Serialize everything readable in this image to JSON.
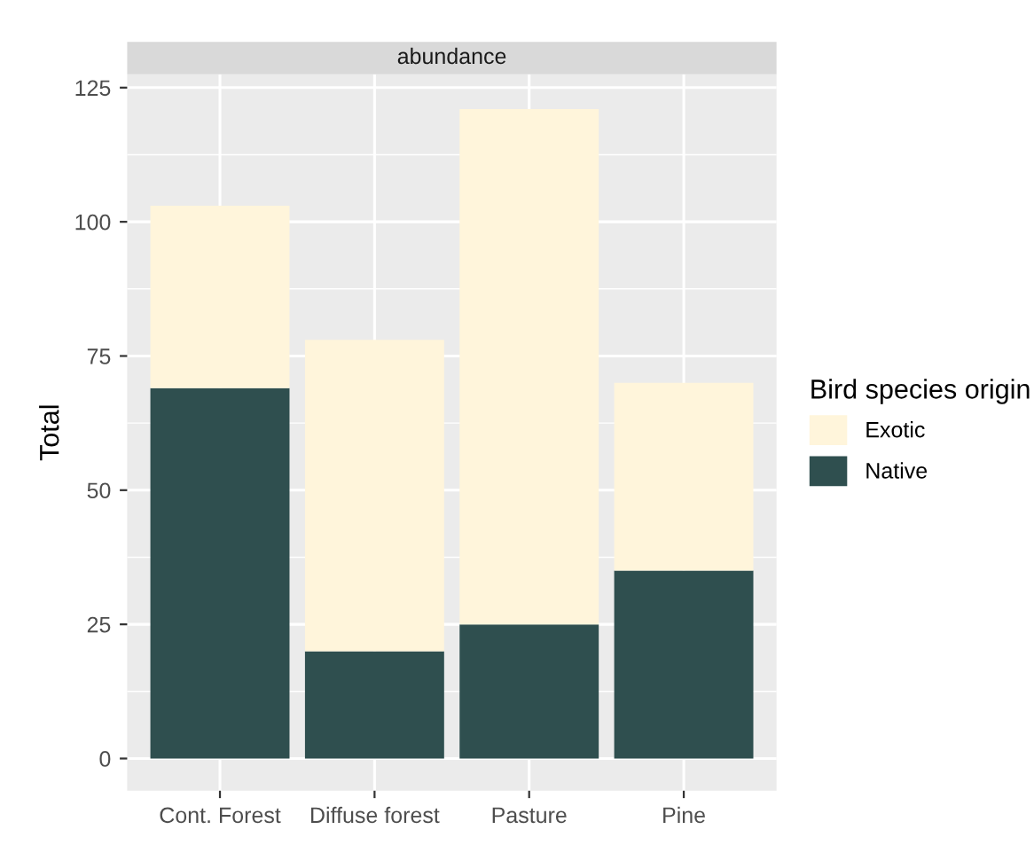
{
  "chart_data": {
    "type": "bar",
    "title": "abundance",
    "ylabel": "Total",
    "legend_title": "Bird species origin",
    "categories": [
      "Cont. Forest",
      "Diffuse forest",
      "Pasture",
      "Pine"
    ],
    "series": [
      {
        "name": "Native",
        "color": "#2f4f4f",
        "values": [
          69,
          20,
          25,
          35
        ]
      },
      {
        "name": "Exotic",
        "color": "#fff5db",
        "values": [
          34,
          58,
          96,
          35
        ]
      }
    ],
    "stacked": true,
    "ylim": [
      -6,
      127.5
    ],
    "yticks": [
      0,
      25,
      50,
      75,
      100,
      125
    ],
    "grid": true,
    "legend": "right"
  }
}
